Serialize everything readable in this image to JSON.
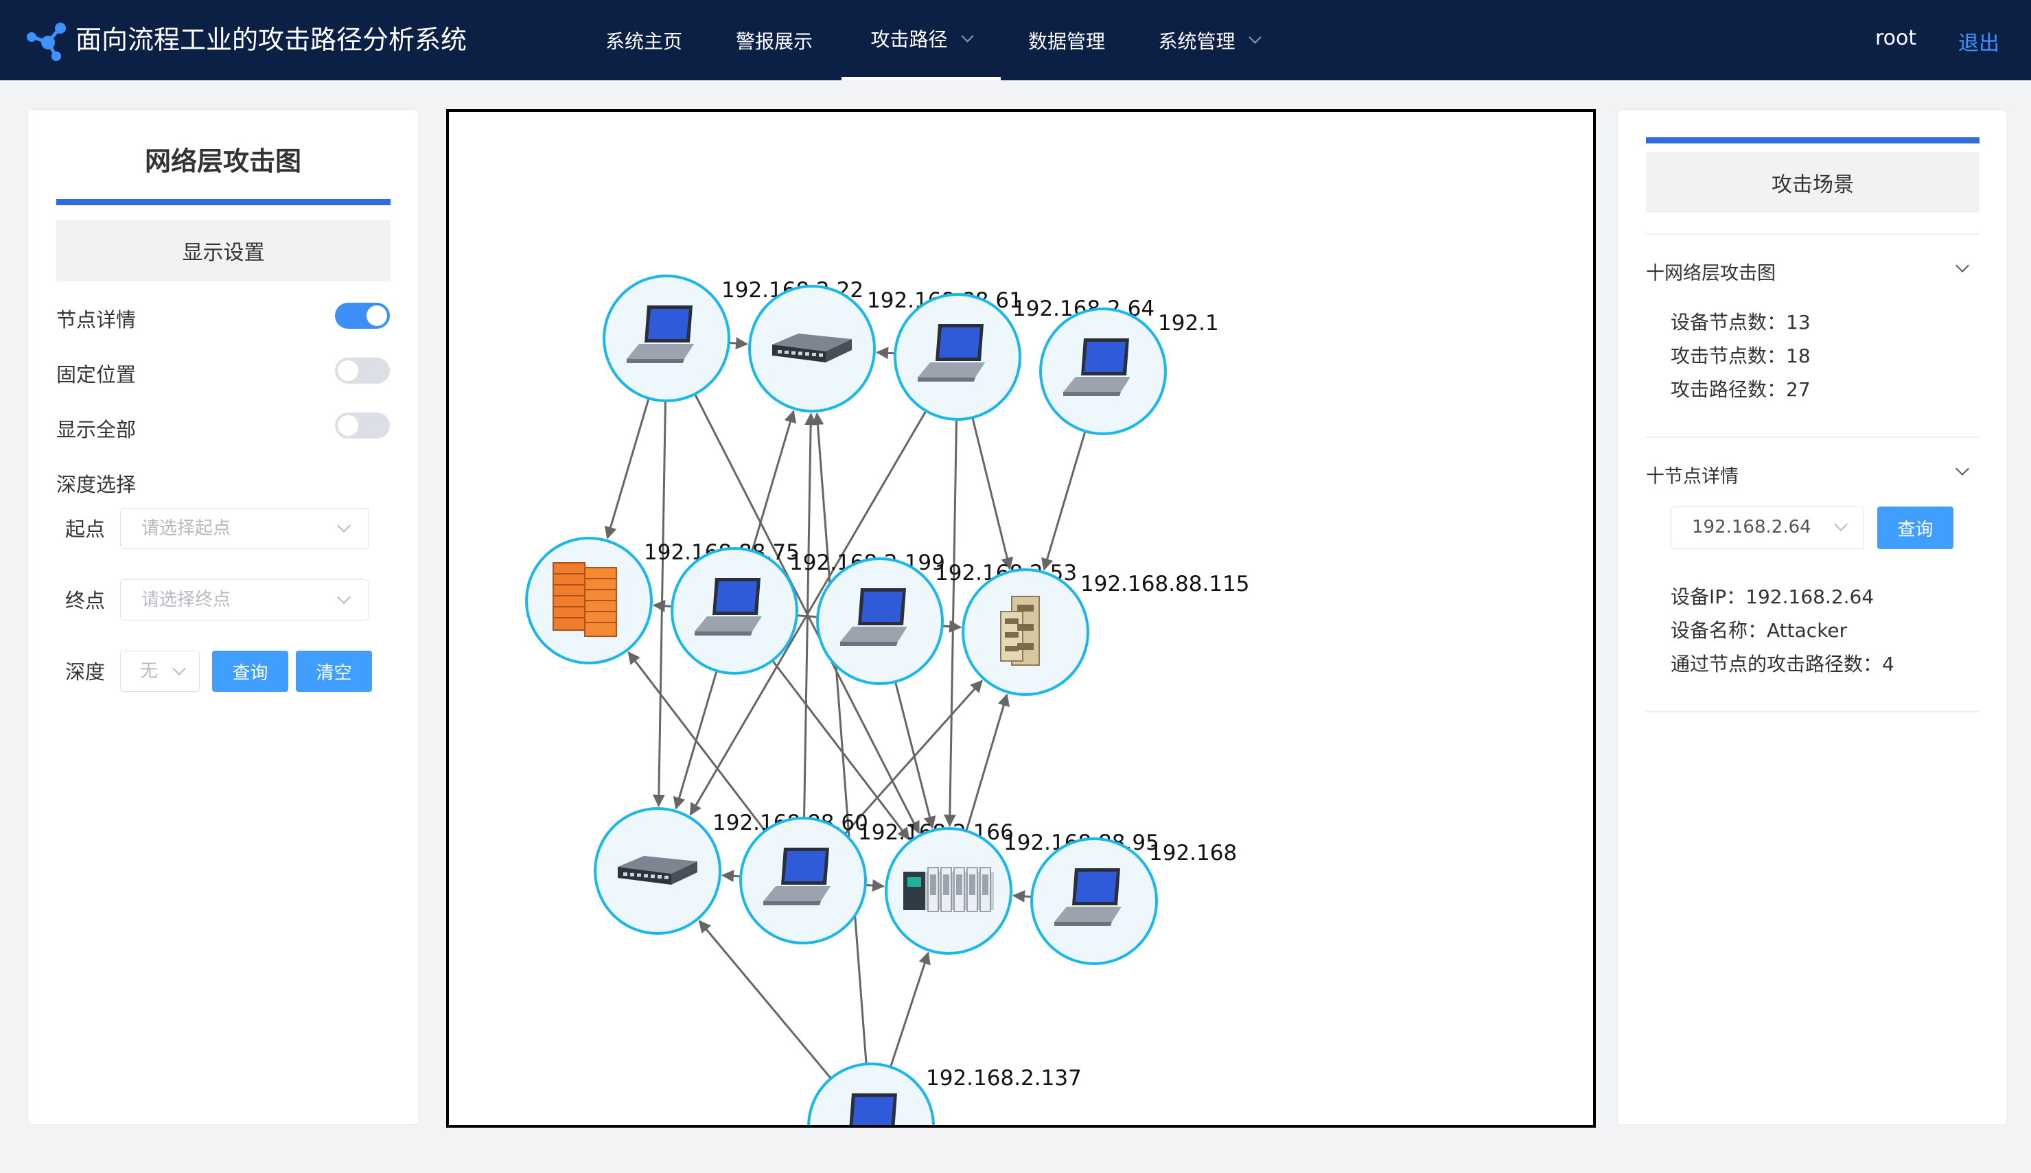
{
  "header": {
    "title": "面向流程工业的攻击路径分析系统",
    "nav": [
      {
        "label": "系统主页"
      },
      {
        "label": "警报展示"
      },
      {
        "label": "攻击路径"
      },
      {
        "label": "数据管理"
      },
      {
        "label": "系统管理"
      }
    ],
    "user": "root",
    "logout": "退出"
  },
  "left_panel": {
    "title": "网络层攻击图",
    "display_settings": "显示设置",
    "toggles": [
      {
        "label": "节点详情",
        "on": true
      },
      {
        "label": "固定位置",
        "on": false
      },
      {
        "label": "显示全部",
        "on": false
      }
    ],
    "depth_section": "深度选择",
    "start_label": "起点",
    "start_placeholder": "请选择起点",
    "end_label": "终点",
    "end_placeholder": "请选择终点",
    "depth_label": "深度",
    "depth_value": "无",
    "query": "查询",
    "clear": "清空"
  },
  "graph": {
    "nodes": [
      {
        "id": "n1",
        "label": "192.168.2.22",
        "type": "laptop"
      },
      {
        "id": "n2",
        "label": "192.168.88.61",
        "type": "switch"
      },
      {
        "id": "n3",
        "label": "192.168.2.64",
        "type": "laptop"
      },
      {
        "id": "n4",
        "label": "192.1",
        "type": "laptop"
      },
      {
        "id": "n5",
        "label": "192.168.88.75",
        "type": "firewall"
      },
      {
        "id": "n6",
        "label": "192.168.2.199",
        "type": "laptop"
      },
      {
        "id": "n7",
        "label": "192.168.2.53",
        "type": "laptop"
      },
      {
        "id": "n8",
        "label": "192.168.88.115",
        "type": "server"
      },
      {
        "id": "n9",
        "label": "192.168.88.60",
        "type": "switch"
      },
      {
        "id": "n10",
        "label": "192.168.2.166",
        "type": "laptop"
      },
      {
        "id": "n11",
        "label": "192.168.88.95",
        "type": "plc"
      },
      {
        "id": "n12",
        "label": "192.168",
        "type": "laptop"
      },
      {
        "id": "n13",
        "label": "192.168.2.137",
        "type": "laptop"
      }
    ],
    "edges": [
      [
        "n1",
        "n2"
      ],
      [
        "n1",
        "n5"
      ],
      [
        "n1",
        "n9"
      ],
      [
        "n1",
        "n11"
      ],
      [
        "n3",
        "n2"
      ],
      [
        "n3",
        "n8"
      ],
      [
        "n3",
        "n9"
      ],
      [
        "n3",
        "n11"
      ],
      [
        "n4",
        "n8"
      ],
      [
        "n6",
        "n2"
      ],
      [
        "n6",
        "n5"
      ],
      [
        "n6",
        "n9"
      ],
      [
        "n6",
        "n11"
      ],
      [
        "n6",
        "n8"
      ],
      [
        "n7",
        "n8"
      ],
      [
        "n7",
        "n11"
      ],
      [
        "n10",
        "n2"
      ],
      [
        "n10",
        "n9"
      ],
      [
        "n10",
        "n11"
      ],
      [
        "n10",
        "n8"
      ],
      [
        "n10",
        "n5"
      ],
      [
        "n11",
        "n8"
      ],
      [
        "n12",
        "n11"
      ],
      [
        "n13",
        "n2"
      ],
      [
        "n13",
        "n9"
      ],
      [
        "n13",
        "n11"
      ]
    ]
  },
  "right_panel": {
    "scene_label": "攻击场景",
    "section1_title": "十网络层攻击图",
    "stats": [
      {
        "label": "设备节点数：",
        "value": "13"
      },
      {
        "label": "攻击节点数：",
        "value": "18"
      },
      {
        "label": "攻击路径数：",
        "value": "27"
      }
    ],
    "section2_title": "十节点详情",
    "node_select_value": "192.168.2.64",
    "query": "查询",
    "details": [
      {
        "label": "设备IP：",
        "value": "192.168.2.64"
      },
      {
        "label": "设备名称：",
        "value": "Attacker"
      },
      {
        "label": "通过节点的攻击路径数：",
        "value": "4"
      }
    ]
  }
}
